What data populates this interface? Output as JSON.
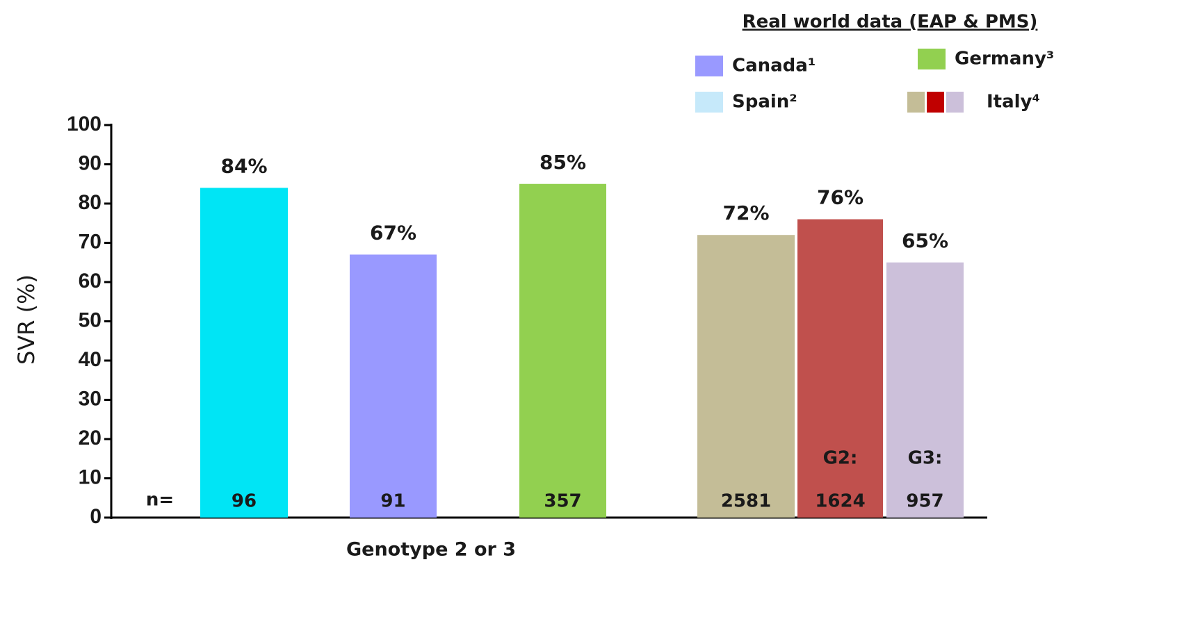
{
  "chart_data": {
    "type": "bar",
    "ylabel": "SVR (%)",
    "xlabel": "Genotype 2 or 3",
    "categories": [
      null,
      null,
      null,
      null,
      null,
      null
    ],
    "values": [
      84,
      67,
      85,
      72,
      76,
      65
    ],
    "value_labels": [
      "84%",
      "67%",
      "85%",
      "72%",
      "76%",
      "65%"
    ],
    "colors": [
      "#00e5f5",
      "#9999ff",
      "#92d050",
      "#c4bd97",
      "#c0504d",
      "#ccc0da"
    ],
    "n_label": "n=",
    "n": [
      96,
      91,
      357,
      2581,
      1624,
      957
    ],
    "bar_annotations": [
      null,
      null,
      null,
      null,
      "G2:",
      "G3:"
    ],
    "ylim": [
      0,
      100
    ],
    "yticks": [
      0,
      10,
      20,
      30,
      40,
      50,
      60,
      70,
      80,
      90,
      100
    ],
    "legend": {
      "title": "Real world data (EAP & PMS)",
      "entries": [
        {
          "name": "Canada¹",
          "colors": [
            "#9999ff"
          ]
        },
        {
          "name": "Germany³",
          "colors": [
            "#92d050"
          ]
        },
        {
          "name": "Spain²",
          "colors": [
            "#c6e9fa"
          ]
        },
        {
          "name": "Italy⁴",
          "colors": [
            "#c4bd97",
            "#c00000",
            "#ccc0da"
          ]
        }
      ]
    }
  }
}
